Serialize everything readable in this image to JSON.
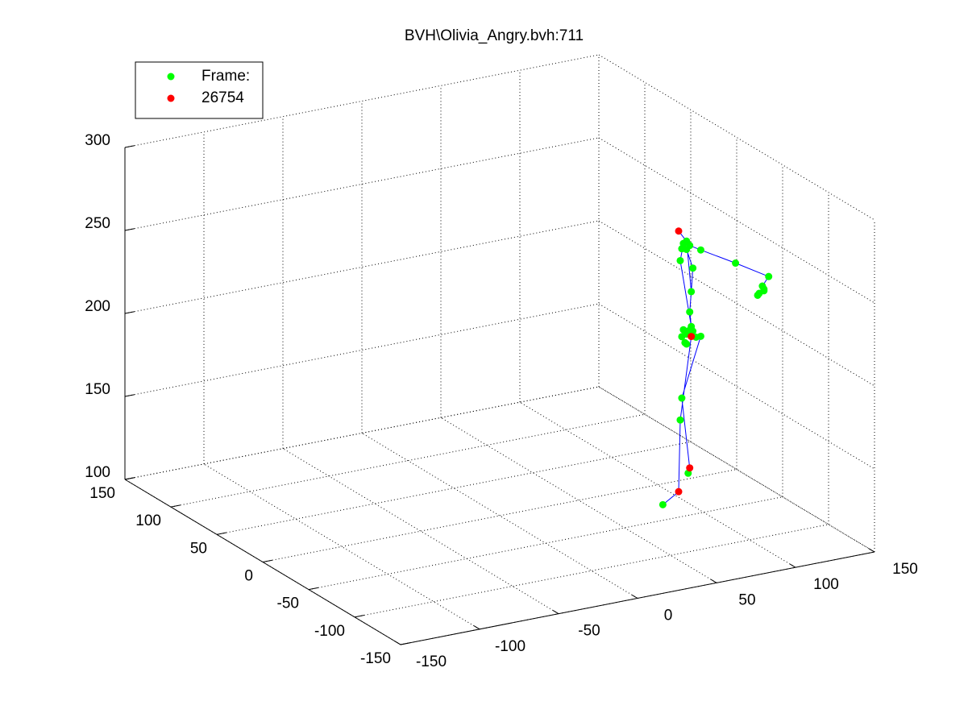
{
  "chart_data": {
    "type": "scatter3d",
    "title": "BVH\\Olivia_Angry.bvh:711",
    "xlim": [
      -150,
      150
    ],
    "ylim": [
      -150,
      150
    ],
    "zlim": [
      100,
      300
    ],
    "xticks": [
      -150,
      -100,
      -50,
      0,
      50,
      100,
      150
    ],
    "yticks": [
      -150,
      -100,
      -50,
      0,
      50,
      100,
      150
    ],
    "zticks": [
      100,
      150,
      200,
      250,
      300
    ],
    "grid": true,
    "legend": "northwest",
    "series": [
      {
        "name": "Frame:",
        "color": "#00ff00",
        "x": [
          95,
          93,
          97,
          92,
          95,
          104,
          91,
          99,
          126,
          147,
          143,
          144,
          141,
          144,
          140,
          98,
          97,
          98,
          93,
          97,
          99,
          95,
          92,
          101,
          104,
          94,
          95,
          92,
          91,
          96,
          80
        ],
        "y": [
          -40,
          -40,
          -40,
          -40,
          -40,
          -40,
          -40,
          -40,
          -40,
          -40,
          -40,
          -40,
          -40,
          -40,
          -40,
          -40,
          -40,
          -40,
          -40,
          -40,
          -40,
          -40,
          -40,
          -40,
          -40,
          -40,
          -40,
          -40,
          -40,
          -40,
          -40
        ],
        "z": [
          261,
          260,
          258,
          257,
          256,
          254,
          250,
          244,
          242,
          230,
          225,
          222,
          221,
          223,
          220,
          230,
          218,
          209,
          208,
          207,
          206,
          205,
          204,
          202,
          202,
          200,
          199,
          167,
          154,
          121,
          105
        ]
      },
      {
        "name": "26754",
        "color": "#ff0000",
        "x": [
          90,
          98,
          97,
          90
        ],
        "y": [
          -40,
          -40,
          -40,
          -40
        ],
        "z": [
          268,
          203,
          124,
          111
        ]
      }
    ],
    "lines": {
      "color": "#0000ff",
      "x": [
        80,
        90,
        91,
        98,
        null,
        96,
        97,
        92,
        104,
        null,
        98,
        98,
        97,
        98,
        95,
        90,
        null,
        93,
        91,
        98,
        null,
        97,
        104,
        126,
        147,
        143,
        null,
        95,
        99,
        98
      ],
      "y": [
        -40,
        -40,
        -40,
        -40,
        null,
        -40,
        -40,
        -40,
        -40,
        null,
        -40,
        -40,
        -40,
        -40,
        -40,
        -40,
        null,
        -40,
        -40,
        -40,
        null,
        -40,
        -40,
        -40,
        -40,
        -40,
        null,
        -40,
        -40,
        -40
      ],
      "z": [
        105,
        111,
        154,
        203,
        null,
        121,
        124,
        167,
        202,
        null,
        203,
        209,
        218,
        230,
        261,
        268,
        null,
        260,
        250,
        209,
        null,
        258,
        254,
        242,
        230,
        225,
        null,
        256,
        244,
        230
      ]
    }
  }
}
